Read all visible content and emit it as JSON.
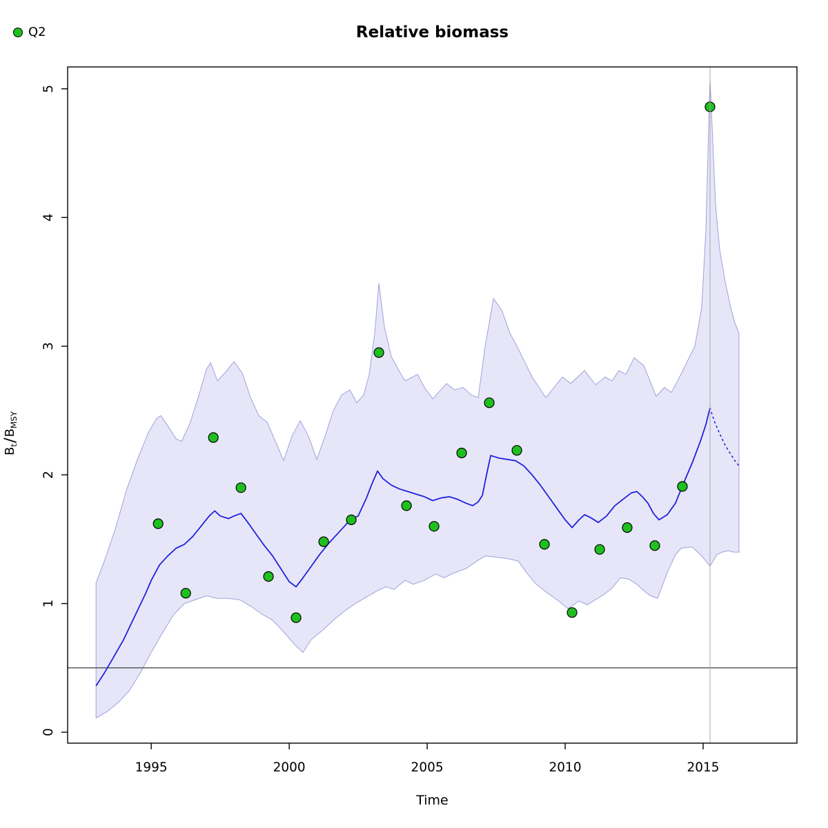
{
  "chart_data": {
    "type": "line",
    "title": "Relative biomass",
    "xlabel": "Time",
    "ylabel": "Bt/BMSY",
    "ylabel_parts": {
      "base1": "B",
      "sub1": "t",
      "slash": "/",
      "base2": "B",
      "sub2": "MSY"
    },
    "xlim": [
      1991.97,
      2018.4
    ],
    "ylim": [
      -0.085,
      5.17
    ],
    "x_ticks": [
      1995,
      2000,
      2005,
      2010,
      2015
    ],
    "y_ticks": [
      0,
      1,
      2,
      3,
      4,
      5
    ],
    "grid": false,
    "legend": {
      "position": "top-left-outside",
      "entries": [
        {
          "label": "Q2",
          "marker": "circle",
          "color": "#1fbf1f"
        }
      ]
    },
    "reference_lines": {
      "horizontal_y": 0.5,
      "vertical_x": 2015.25
    },
    "band": {
      "name": "95%-confidence-band",
      "fill": "#e6e6f8",
      "edge": "#a0a0dc",
      "upper": [
        [
          1993.0,
          1.16
        ],
        [
          1993.3,
          1.33
        ],
        [
          1993.7,
          1.58
        ],
        [
          1994.1,
          1.88
        ],
        [
          1994.5,
          2.12
        ],
        [
          1994.9,
          2.33
        ],
        [
          1995.2,
          2.44
        ],
        [
          1995.35,
          2.46
        ],
        [
          1995.6,
          2.38
        ],
        [
          1995.9,
          2.28
        ],
        [
          1996.1,
          2.26
        ],
        [
          1996.4,
          2.4
        ],
        [
          1996.7,
          2.6
        ],
        [
          1997.0,
          2.82
        ],
        [
          1997.15,
          2.87
        ],
        [
          1997.4,
          2.73
        ],
        [
          1997.7,
          2.8
        ],
        [
          1998.0,
          2.88
        ],
        [
          1998.3,
          2.79
        ],
        [
          1998.6,
          2.6
        ],
        [
          1998.9,
          2.46
        ],
        [
          1999.2,
          2.41
        ],
        [
          1999.5,
          2.26
        ],
        [
          1999.8,
          2.11
        ],
        [
          2000.1,
          2.3
        ],
        [
          2000.4,
          2.42
        ],
        [
          2000.7,
          2.3
        ],
        [
          2001.0,
          2.12
        ],
        [
          2001.3,
          2.3
        ],
        [
          2001.6,
          2.5
        ],
        [
          2001.9,
          2.62
        ],
        [
          2002.2,
          2.66
        ],
        [
          2002.45,
          2.56
        ],
        [
          2002.7,
          2.62
        ],
        [
          2002.9,
          2.78
        ],
        [
          2003.1,
          3.1
        ],
        [
          2003.25,
          3.49
        ],
        [
          2003.45,
          3.15
        ],
        [
          2003.7,
          2.92
        ],
        [
          2004.0,
          2.8
        ],
        [
          2004.2,
          2.73
        ],
        [
          2004.65,
          2.78
        ],
        [
          2004.9,
          2.68
        ],
        [
          2005.2,
          2.59
        ],
        [
          2005.7,
          2.71
        ],
        [
          2006.0,
          2.66
        ],
        [
          2006.3,
          2.68
        ],
        [
          2006.6,
          2.62
        ],
        [
          2006.85,
          2.6
        ],
        [
          2007.1,
          3.0
        ],
        [
          2007.4,
          3.37
        ],
        [
          2007.7,
          3.28
        ],
        [
          2008.0,
          3.1
        ],
        [
          2008.3,
          2.98
        ],
        [
          2008.8,
          2.76
        ],
        [
          2009.3,
          2.6
        ],
        [
          2009.9,
          2.76
        ],
        [
          2010.2,
          2.71
        ],
        [
          2010.7,
          2.81
        ],
        [
          2011.1,
          2.7
        ],
        [
          2011.45,
          2.76
        ],
        [
          2011.7,
          2.73
        ],
        [
          2011.95,
          2.81
        ],
        [
          2012.2,
          2.78
        ],
        [
          2012.5,
          2.91
        ],
        [
          2012.85,
          2.85
        ],
        [
          2013.3,
          2.61
        ],
        [
          2013.6,
          2.68
        ],
        [
          2013.85,
          2.64
        ],
        [
          2014.1,
          2.74
        ],
        [
          2014.4,
          2.87
        ],
        [
          2014.7,
          3.0
        ],
        [
          2014.95,
          3.3
        ],
        [
          2015.1,
          3.9
        ],
        [
          2015.25,
          5.08
        ],
        [
          2015.45,
          4.1
        ],
        [
          2015.6,
          3.75
        ],
        [
          2015.8,
          3.5
        ],
        [
          2016.0,
          3.3
        ],
        [
          2016.15,
          3.18
        ],
        [
          2016.3,
          3.1
        ]
      ],
      "lower": [
        [
          1993.0,
          0.11
        ],
        [
          1993.4,
          0.16
        ],
        [
          1993.8,
          0.23
        ],
        [
          1994.2,
          0.32
        ],
        [
          1994.6,
          0.46
        ],
        [
          1995.0,
          0.62
        ],
        [
          1995.4,
          0.77
        ],
        [
          1995.8,
          0.91
        ],
        [
          1996.2,
          1.0
        ],
        [
          1996.6,
          1.03
        ],
        [
          1997.0,
          1.06
        ],
        [
          1997.4,
          1.04
        ],
        [
          1997.8,
          1.04
        ],
        [
          1998.2,
          1.03
        ],
        [
          1998.6,
          0.98
        ],
        [
          1999.0,
          0.92
        ],
        [
          1999.4,
          0.87
        ],
        [
          1999.8,
          0.78
        ],
        [
          2000.2,
          0.68
        ],
        [
          2000.5,
          0.62
        ],
        [
          2000.8,
          0.72
        ],
        [
          2001.2,
          0.79
        ],
        [
          2001.6,
          0.87
        ],
        [
          2002.0,
          0.94
        ],
        [
          2002.4,
          1.0
        ],
        [
          2002.8,
          1.05
        ],
        [
          2003.2,
          1.1
        ],
        [
          2003.5,
          1.13
        ],
        [
          2003.8,
          1.11
        ],
        [
          2004.2,
          1.18
        ],
        [
          2004.5,
          1.15
        ],
        [
          2004.9,
          1.18
        ],
        [
          2005.3,
          1.23
        ],
        [
          2005.6,
          1.2
        ],
        [
          2006.0,
          1.24
        ],
        [
          2006.4,
          1.27
        ],
        [
          2006.8,
          1.33
        ],
        [
          2007.1,
          1.37
        ],
        [
          2007.5,
          1.36
        ],
        [
          2007.9,
          1.35
        ],
        [
          2008.3,
          1.33
        ],
        [
          2008.6,
          1.24
        ],
        [
          2008.9,
          1.16
        ],
        [
          2009.3,
          1.09
        ],
        [
          2009.7,
          1.03
        ],
        [
          2010.1,
          0.96
        ],
        [
          2010.5,
          1.02
        ],
        [
          2010.8,
          0.99
        ],
        [
          2011.1,
          1.03
        ],
        [
          2011.4,
          1.07
        ],
        [
          2011.7,
          1.12
        ],
        [
          2012.0,
          1.2
        ],
        [
          2012.3,
          1.19
        ],
        [
          2012.6,
          1.15
        ],
        [
          2012.9,
          1.09
        ],
        [
          2013.1,
          1.06
        ],
        [
          2013.35,
          1.04
        ],
        [
          2013.7,
          1.24
        ],
        [
          2014.0,
          1.38
        ],
        [
          2014.2,
          1.43
        ],
        [
          2014.6,
          1.44
        ],
        [
          2014.95,
          1.37
        ],
        [
          2015.25,
          1.29
        ],
        [
          2015.5,
          1.38
        ],
        [
          2015.7,
          1.4
        ],
        [
          2015.9,
          1.41
        ],
        [
          2016.1,
          1.4
        ],
        [
          2016.3,
          1.4
        ]
      ]
    },
    "series": [
      {
        "name": "median-estimate",
        "type": "line",
        "style": "solid",
        "color": "#2020dd",
        "points": [
          [
            1993.0,
            0.36
          ],
          [
            1993.3,
            0.46
          ],
          [
            1993.6,
            0.57
          ],
          [
            1994.0,
            0.72
          ],
          [
            1994.4,
            0.9
          ],
          [
            1994.8,
            1.08
          ],
          [
            1995.0,
            1.18
          ],
          [
            1995.3,
            1.3
          ],
          [
            1995.6,
            1.37
          ],
          [
            1995.9,
            1.43
          ],
          [
            1996.2,
            1.46
          ],
          [
            1996.5,
            1.52
          ],
          [
            1996.8,
            1.6
          ],
          [
            1997.1,
            1.68
          ],
          [
            1997.3,
            1.72
          ],
          [
            1997.5,
            1.68
          ],
          [
            1997.8,
            1.66
          ],
          [
            1998.0,
            1.68
          ],
          [
            1998.25,
            1.7
          ],
          [
            1998.5,
            1.63
          ],
          [
            1998.8,
            1.54
          ],
          [
            1999.1,
            1.45
          ],
          [
            1999.4,
            1.37
          ],
          [
            1999.7,
            1.27
          ],
          [
            2000.0,
            1.17
          ],
          [
            2000.25,
            1.13
          ],
          [
            2000.5,
            1.2
          ],
          [
            2000.8,
            1.29
          ],
          [
            2001.1,
            1.38
          ],
          [
            2001.4,
            1.46
          ],
          [
            2001.7,
            1.53
          ],
          [
            2002.0,
            1.6
          ],
          [
            2002.2,
            1.65
          ],
          [
            2002.5,
            1.68
          ],
          [
            2002.8,
            1.82
          ],
          [
            2003.0,
            1.93
          ],
          [
            2003.2,
            2.03
          ],
          [
            2003.4,
            1.97
          ],
          [
            2003.7,
            1.92
          ],
          [
            2004.0,
            1.89
          ],
          [
            2004.3,
            1.87
          ],
          [
            2004.6,
            1.85
          ],
          [
            2004.9,
            1.83
          ],
          [
            2005.2,
            1.8
          ],
          [
            2005.5,
            1.82
          ],
          [
            2005.8,
            1.83
          ],
          [
            2006.1,
            1.81
          ],
          [
            2006.4,
            1.78
          ],
          [
            2006.65,
            1.76
          ],
          [
            2006.85,
            1.79
          ],
          [
            2007.0,
            1.84
          ],
          [
            2007.15,
            2.0
          ],
          [
            2007.3,
            2.15
          ],
          [
            2007.6,
            2.13
          ],
          [
            2007.9,
            2.12
          ],
          [
            2008.2,
            2.11
          ],
          [
            2008.5,
            2.07
          ],
          [
            2008.8,
            2.0
          ],
          [
            2009.1,
            1.92
          ],
          [
            2009.4,
            1.83
          ],
          [
            2009.7,
            1.74
          ],
          [
            2010.0,
            1.65
          ],
          [
            2010.25,
            1.59
          ],
          [
            2010.5,
            1.65
          ],
          [
            2010.7,
            1.69
          ],
          [
            2010.9,
            1.67
          ],
          [
            2011.2,
            1.63
          ],
          [
            2011.5,
            1.68
          ],
          [
            2011.8,
            1.76
          ],
          [
            2012.1,
            1.81
          ],
          [
            2012.4,
            1.86
          ],
          [
            2012.6,
            1.87
          ],
          [
            2012.8,
            1.83
          ],
          [
            2013.0,
            1.78
          ],
          [
            2013.2,
            1.7
          ],
          [
            2013.4,
            1.65
          ],
          [
            2013.7,
            1.69
          ],
          [
            2014.0,
            1.78
          ],
          [
            2014.3,
            1.94
          ],
          [
            2014.6,
            2.09
          ],
          [
            2014.9,
            2.26
          ],
          [
            2015.1,
            2.39
          ],
          [
            2015.25,
            2.52
          ]
        ]
      },
      {
        "name": "median-forecast",
        "type": "line",
        "style": "dotted",
        "color": "#2020dd",
        "points": [
          [
            2015.25,
            2.52
          ],
          [
            2015.4,
            2.42
          ],
          [
            2015.6,
            2.32
          ],
          [
            2015.8,
            2.23
          ],
          [
            2016.0,
            2.16
          ],
          [
            2016.15,
            2.11
          ],
          [
            2016.3,
            2.07
          ]
        ]
      },
      {
        "name": "Q2",
        "type": "scatter",
        "color": "#1fbf1f",
        "marker_edge": "#000000",
        "points": [
          [
            1995.25,
            1.62
          ],
          [
            1996.25,
            1.08
          ],
          [
            1997.25,
            2.29
          ],
          [
            1998.25,
            1.9
          ],
          [
            1999.25,
            1.21
          ],
          [
            2000.25,
            0.89
          ],
          [
            2001.25,
            1.48
          ],
          [
            2002.25,
            1.65
          ],
          [
            2003.25,
            2.95
          ],
          [
            2004.25,
            1.76
          ],
          [
            2005.25,
            1.6
          ],
          [
            2006.25,
            2.17
          ],
          [
            2007.25,
            2.56
          ],
          [
            2008.25,
            2.19
          ],
          [
            2009.25,
            1.46
          ],
          [
            2010.25,
            0.93
          ],
          [
            2011.25,
            1.42
          ],
          [
            2012.25,
            1.59
          ],
          [
            2013.25,
            1.45
          ],
          [
            2014.25,
            1.91
          ],
          [
            2015.25,
            4.86
          ]
        ]
      }
    ],
    "colors": {
      "horizontal_reference": "#3a3a3a",
      "vertical_reference": "#aaaaaa",
      "axis": "#000000"
    }
  }
}
